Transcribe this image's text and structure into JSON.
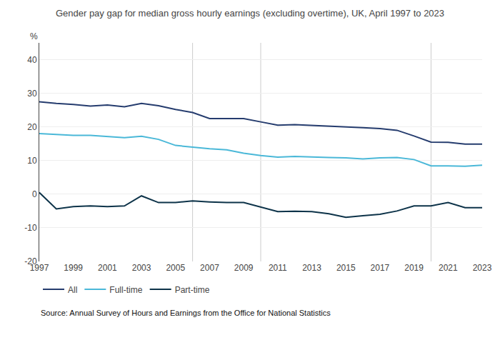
{
  "chart_data": {
    "type": "line",
    "title": "Gender pay gap for median gross hourly earnings (excluding overtime), UK, April 1997 to 2023",
    "ylabel": "%",
    "source": "Source: Annual Survey of Hours and Earnings from the Office for National Statistics",
    "x": [
      1997,
      1998,
      1999,
      2000,
      2001,
      2002,
      2003,
      2004,
      2005,
      2006,
      2007,
      2008,
      2009,
      2010,
      2011,
      2012,
      2013,
      2014,
      2015,
      2016,
      2017,
      2018,
      2019,
      2020,
      2021,
      2022,
      2023
    ],
    "series": [
      {
        "name": "All",
        "color": "#253c6e",
        "values": [
          27.5,
          27.0,
          26.7,
          26.2,
          26.5,
          26.0,
          27.0,
          26.3,
          25.2,
          24.3,
          22.5,
          22.5,
          22.5,
          21.5,
          20.5,
          20.7,
          20.5,
          20.3,
          20.1,
          19.8,
          19.5,
          19.0,
          17.3,
          15.5,
          15.4,
          14.9,
          14.9
        ]
      },
      {
        "name": "Full-time",
        "color": "#4ab8d8",
        "values": [
          18.0,
          17.8,
          17.5,
          17.5,
          17.2,
          16.8,
          17.2,
          16.3,
          14.5,
          14.0,
          13.5,
          13.2,
          12.2,
          11.5,
          11.0,
          11.2,
          11.0,
          10.9,
          10.8,
          10.5,
          10.8,
          10.9,
          10.3,
          8.4,
          8.4,
          8.3,
          8.6
        ]
      },
      {
        "name": "Part-time",
        "color": "#0d3349",
        "values": [
          0.5,
          -4.4,
          -3.7,
          -3.5,
          -3.7,
          -3.5,
          -0.5,
          -2.5,
          -2.5,
          -2.0,
          -2.3,
          -2.5,
          -2.5,
          -3.8,
          -5.2,
          -5.1,
          -5.2,
          -5.8,
          -6.9,
          -6.4,
          -6.0,
          -5.0,
          -3.5,
          -3.5,
          -2.5,
          -4.0,
          -4.0
        ]
      }
    ],
    "vlines": [
      2006,
      2010,
      2020
    ],
    "xlim": [
      1997,
      2023
    ],
    "xticks": [
      1997,
      1999,
      2001,
      2003,
      2005,
      2007,
      2009,
      2011,
      2013,
      2015,
      2017,
      2019,
      2021,
      2023
    ],
    "ylim": [
      -20,
      45
    ],
    "yticks": [
      -20,
      -10,
      0,
      10,
      20,
      30,
      40
    ],
    "grid": true,
    "legend": "bottom"
  }
}
